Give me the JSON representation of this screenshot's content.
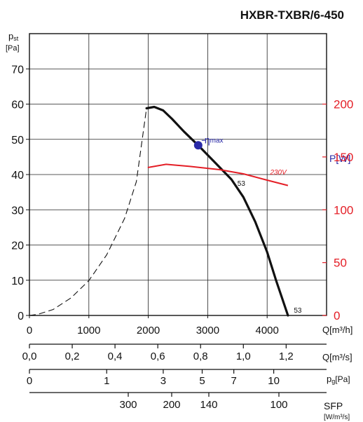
{
  "chart_data": {
    "type": "line",
    "title": "HXBR-TXBR/6-450",
    "y_label_main": "p",
    "y_label_sub": "st",
    "y_unit": "[Pa]",
    "y_ticks": [
      0,
      10,
      20,
      30,
      40,
      50,
      60,
      70
    ],
    "ylim": [
      0,
      80
    ],
    "xlim": [
      0,
      5000
    ],
    "x_ticks": [
      "0",
      "1000",
      "2000",
      "3000",
      "4000"
    ],
    "x_tick_values": [
      0,
      1000,
      2000,
      3000,
      4000
    ],
    "x_label": "Q[m³/h]",
    "p_label": "P[W]",
    "p_ticks": [
      0,
      50,
      100,
      150,
      200
    ],
    "p_lim": [
      0,
      266.67
    ],
    "q_s_label": "Q[m³/s]",
    "q_s_ticks": [
      "0,0",
      "0,2",
      "0,4",
      "0,6",
      "0,8",
      "1,0",
      "1,2"
    ],
    "q_s_tick_values": [
      0,
      0.2,
      0.4,
      0.6,
      0.8,
      1.0,
      1.2
    ],
    "pg_label_main": "p",
    "pg_label_sub": "g",
    "pg_label_unit": "[Pa]",
    "pg_ticks": [
      "0",
      "1",
      "3",
      "5",
      "7",
      "10"
    ],
    "pg_tick_values": [
      0,
      1,
      3,
      5,
      7,
      10
    ],
    "sfp_label": "SFP",
    "sfp_unit": "[W/m³/s]",
    "sfp_ticks": [
      "300",
      "200",
      "140",
      "100"
    ],
    "sfp_tick_values": [
      300,
      200,
      140,
      100
    ],
    "eta_label": "η",
    "eta_sub": "max",
    "eta_point": {
      "x": 2840,
      "y": 48.3
    },
    "curve_label": "53",
    "curve_end_label": "53",
    "power_label": "230V",
    "grid": true,
    "series": [
      {
        "name": "53",
        "style": "solid",
        "points": [
          [
            1970,
            58.8
          ],
          [
            2100,
            59.2
          ],
          [
            2250,
            58.2
          ],
          [
            2400,
            55.8
          ],
          [
            2600,
            52.2
          ],
          [
            2840,
            48.3
          ],
          [
            3100,
            43.8
          ],
          [
            3400,
            38.6
          ],
          [
            3600,
            33.6
          ],
          [
            3800,
            26.6
          ],
          [
            4000,
            18.0
          ],
          [
            4150,
            10.0
          ],
          [
            4250,
            5.0
          ],
          [
            4350,
            0.0
          ]
        ]
      },
      {
        "name": "",
        "style": "dashed",
        "points": [
          [
            0,
            0
          ],
          [
            150,
            0.35
          ],
          [
            400,
            1.7
          ],
          [
            700,
            5.0
          ],
          [
            1000,
            9.9
          ],
          [
            1300,
            17.2
          ],
          [
            1600,
            27.5
          ],
          [
            1800,
            38.0
          ],
          [
            1970,
            58.8
          ]
        ]
      },
      {
        "name": "230V",
        "style": "power",
        "points": [
          [
            1990,
            140
          ],
          [
            2300,
            143
          ],
          [
            2700,
            141
          ],
          [
            3200,
            138
          ],
          [
            3600,
            134
          ],
          [
            4000,
            128
          ],
          [
            4350,
            123
          ]
        ]
      }
    ]
  }
}
